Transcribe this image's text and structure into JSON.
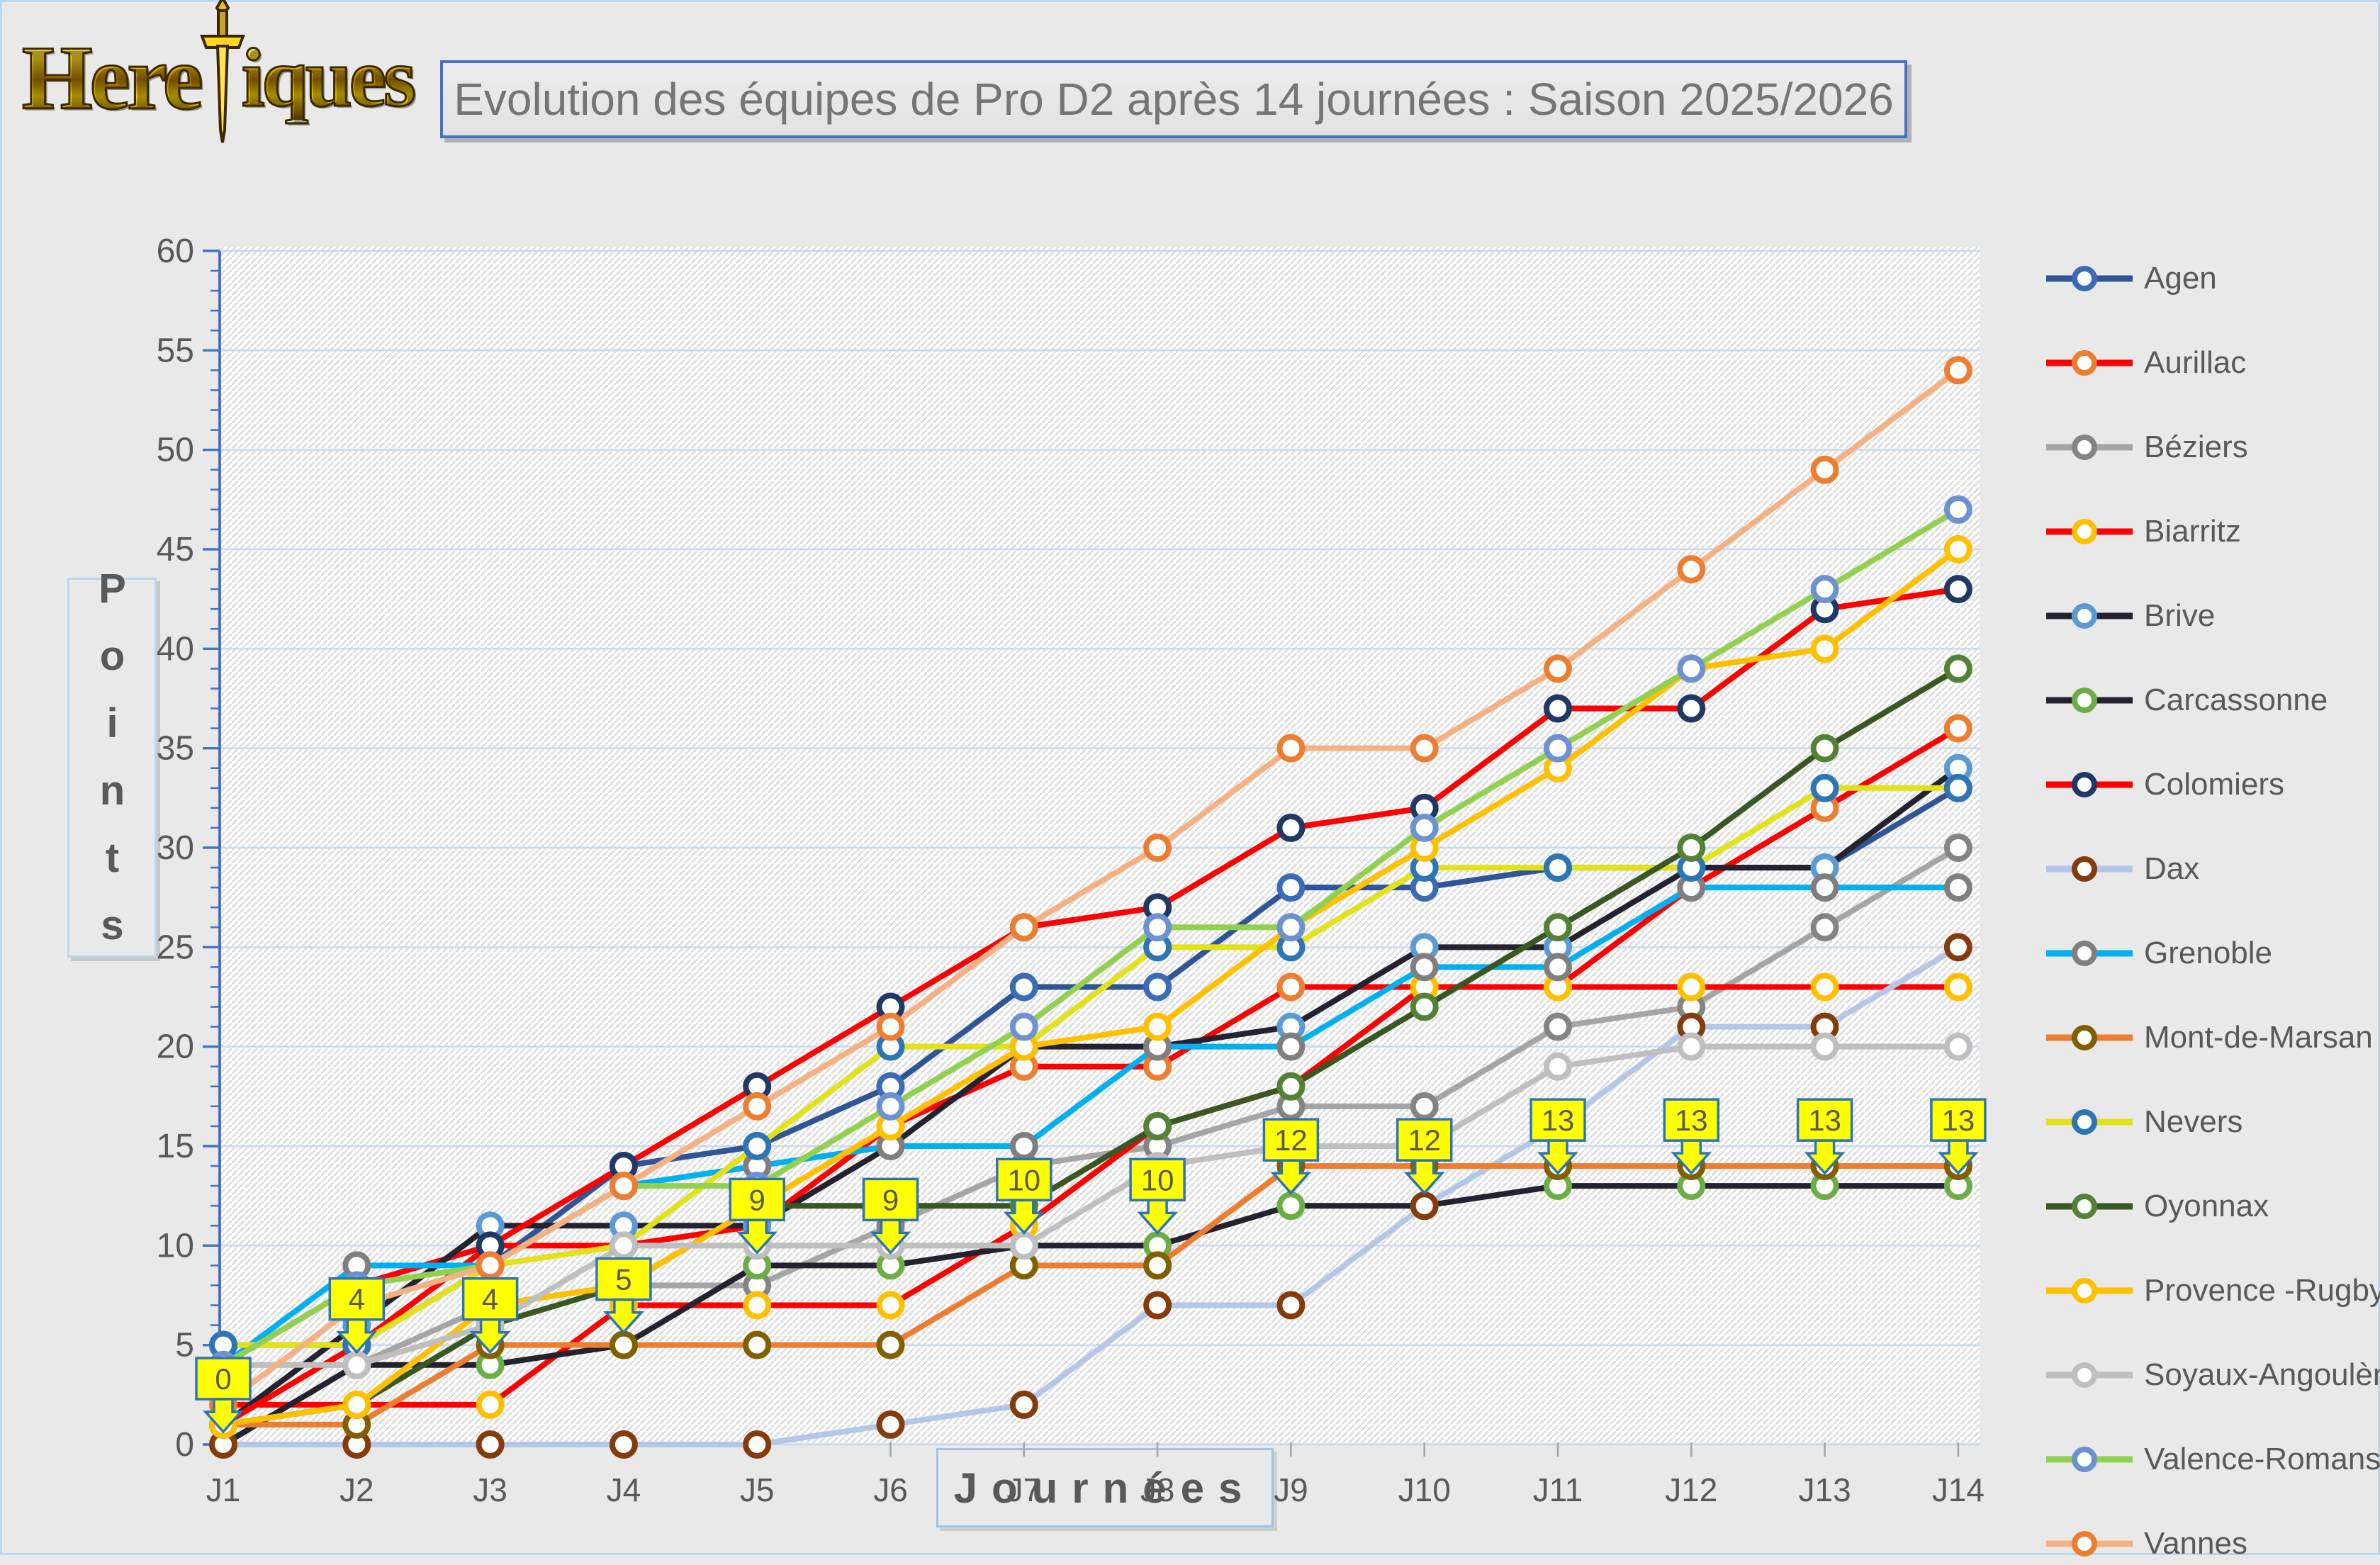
{
  "logo": {
    "text_left": "Here",
    "text_right": "iques",
    "icon": "sword-icon"
  },
  "title": {
    "text": "Evolution des équipes de Pro D2 après 14 journées : Saison 2025/2026"
  },
  "chart_data": {
    "type": "line",
    "title": "Evolution des équipes de Pro D2 après 14 journées : Saison 2025/2026",
    "xlabel": "Journées",
    "ylabel": "Points",
    "x_categories": [
      "J1",
      "J2",
      "J3",
      "J4",
      "J5",
      "J6",
      "J7",
      "J8",
      "J9",
      "J10",
      "J11",
      "J12",
      "J13",
      "J14"
    ],
    "ylim": [
      0,
      60
    ],
    "ytick_step": 5,
    "grid": "horizontal",
    "legend_position": "right",
    "series": [
      {
        "name": "Agen",
        "line_color": "#2f5597",
        "marker_color": "#3a6bb5",
        "values": [
          5,
          5,
          9,
          14,
          15,
          18,
          23,
          23,
          28,
          28,
          29,
          29,
          29,
          33
        ]
      },
      {
        "name": "Aurillac",
        "line_color": "#ff0000",
        "marker_color": "#ed7d31",
        "values": [
          4,
          8,
          10,
          10,
          11,
          16,
          19,
          19,
          23,
          23,
          23,
          28,
          32,
          36
        ]
      },
      {
        "name": "Béziers",
        "line_color": "#a5a5a5",
        "marker_color": "#848484",
        "values": [
          4,
          4,
          7,
          8,
          8,
          11,
          14,
          15,
          17,
          17,
          21,
          22,
          26,
          30
        ]
      },
      {
        "name": "Biarritz",
        "line_color": "#ff0000",
        "marker_color": "#ffc000",
        "values": [
          2,
          2,
          2,
          7,
          7,
          7,
          11,
          16,
          18,
          23,
          23,
          23,
          23,
          23
        ]
      },
      {
        "name": "Brive",
        "line_color": "#24222e",
        "marker_color": "#5b9bd5",
        "values": [
          1,
          6,
          11,
          11,
          11,
          15,
          20,
          20,
          21,
          25,
          25,
          29,
          29,
          34
        ]
      },
      {
        "name": "Carcassonne",
        "line_color": "#24222e",
        "marker_color": "#6cae45",
        "values": [
          0,
          4,
          4,
          5,
          9,
          9,
          10,
          10,
          12,
          12,
          13,
          13,
          13,
          13
        ]
      },
      {
        "name": "Colomiers",
        "line_color": "#ff0000",
        "marker_color": "#1f3864",
        "values": [
          1,
          5,
          10,
          14,
          18,
          22,
          26,
          27,
          31,
          32,
          37,
          37,
          42,
          43
        ]
      },
      {
        "name": "Dax",
        "line_color": "#b4c7e7",
        "marker_color": "#843c0c",
        "values": [
          0,
          0,
          0,
          0,
          0,
          1,
          2,
          7,
          7,
          12,
          16,
          21,
          21,
          25
        ]
      },
      {
        "name": "Grenoble",
        "line_color": "#00b0f0",
        "marker_color": "#7f7f7f",
        "values": [
          4,
          9,
          9,
          13,
          14,
          15,
          15,
          20,
          20,
          24,
          24,
          28,
          28,
          28
        ]
      },
      {
        "name": "Mont-de-Marsan",
        "line_color": "#ed7d31",
        "marker_color": "#806000",
        "values": [
          1,
          1,
          5,
          5,
          5,
          5,
          9,
          9,
          14,
          14,
          14,
          14,
          14,
          14
        ]
      },
      {
        "name": "Nevers",
        "line_color": "#e2e21b",
        "marker_color": "#2e75b6",
        "values": [
          5,
          5,
          9,
          10,
          15,
          20,
          20,
          25,
          25,
          29,
          29,
          29,
          33,
          33
        ]
      },
      {
        "name": "Oyonnax",
        "line_color": "#385723",
        "marker_color": "#538135",
        "values": [
          1,
          2,
          6,
          8,
          12,
          12,
          12,
          16,
          18,
          22,
          26,
          30,
          35,
          39
        ]
      },
      {
        "name": "Provence -Rugby",
        "line_color": "#ffc000",
        "marker_color": "#ffc000",
        "values": [
          1,
          2,
          7,
          8,
          12,
          16,
          20,
          21,
          26,
          30,
          34,
          39,
          40,
          45
        ]
      },
      {
        "name": "Soyaux-Angoulème",
        "line_color": "#bfbfbf",
        "marker_color": "#bfbfbf",
        "values": [
          4,
          4,
          6,
          10,
          10,
          10,
          10,
          14,
          15,
          15,
          19,
          20,
          20,
          20
        ]
      },
      {
        "name": "Valence-Romans",
        "line_color": "#92d050",
        "marker_color": "#6e91d2",
        "values": [
          4,
          8,
          9,
          13,
          13,
          17,
          21,
          26,
          26,
          31,
          35,
          39,
          43,
          47
        ]
      },
      {
        "name": "Vannes",
        "line_color": "#f4b183",
        "marker_color": "#ed7d31",
        "values": [
          2,
          7,
          9,
          13,
          17,
          21,
          26,
          30,
          35,
          35,
          39,
          44,
          49,
          54
        ]
      }
    ],
    "callouts": {
      "series": "Carcassonne",
      "values": [
        0,
        4,
        4,
        5,
        9,
        9,
        10,
        10,
        12,
        12,
        13,
        13,
        13,
        13
      ],
      "box_fill": "#ffff00",
      "box_border": "#2e74b5",
      "text_color": "#595959"
    }
  },
  "colors": {
    "page_bg": "#e9e9e9",
    "plot_bg": "#ffffff",
    "gridline": "#c9d9f0",
    "y_axis": "#4472c4",
    "x_tick": "#a6a6a6",
    "axis_text": "#595959",
    "title_border": "#4472c4",
    "title_text": "#757575",
    "logo_gold": "#ffd71c"
  }
}
